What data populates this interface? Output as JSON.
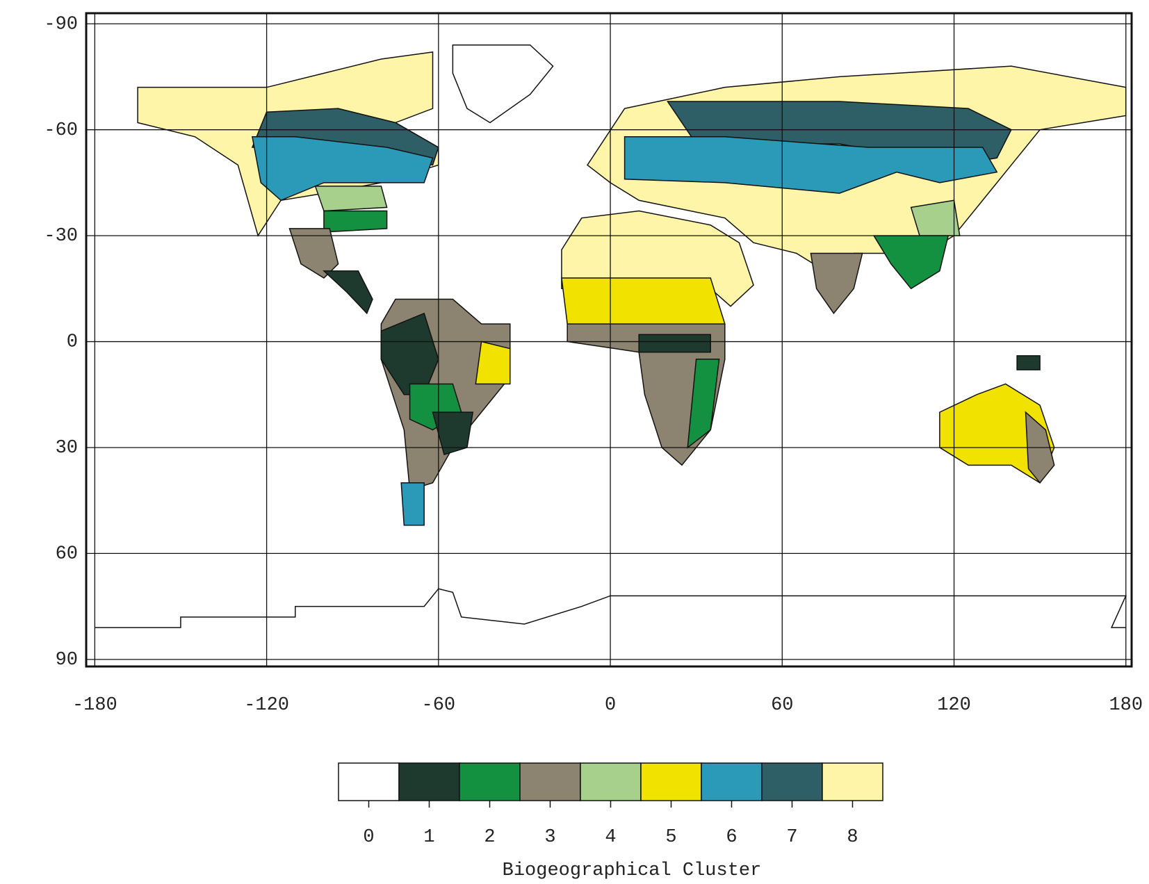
{
  "chart_data": {
    "type": "map",
    "xlim": [
      -183,
      182
    ],
    "xticks": [
      -180,
      -120,
      -60,
      0,
      60,
      120,
      180
    ],
    "ylim": [
      -93,
      92
    ],
    "yticks": [
      -90,
      -60,
      -30,
      0,
      30,
      60,
      90
    ],
    "grid": true,
    "colorbar": {
      "categories": [
        0,
        1,
        2,
        3,
        4,
        5,
        6,
        7,
        8
      ],
      "colors": [
        "#ffffff",
        "#1e3a2e",
        "#139040",
        "#8c8470",
        "#a8d08d",
        "#f2e200",
        "#2a9ab8",
        "#2f5f66",
        "#fff5a8"
      ],
      "label": "Biogeographical Cluster"
    }
  }
}
